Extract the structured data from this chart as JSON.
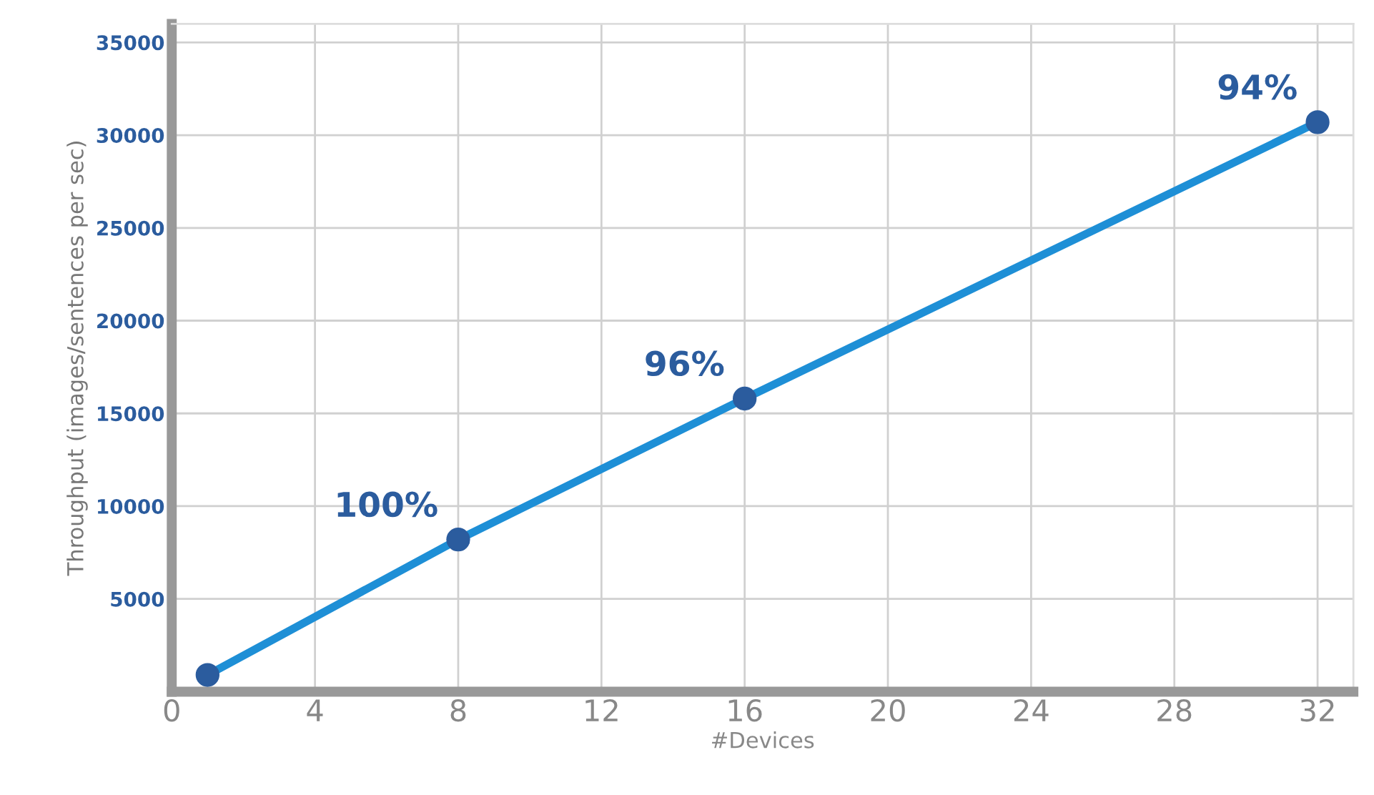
{
  "chart_data": {
    "type": "line",
    "xlabel": "#Devices",
    "ylabel": "Throughput (images/sentences per sec)",
    "x": [
      1,
      8,
      16,
      32
    ],
    "series": [
      {
        "color": "#1e8fd6",
        "values": [
          900,
          8200,
          15800,
          30700
        ]
      }
    ],
    "annotations": [
      {
        "text": "100%",
        "x": 8,
        "y": 8200
      },
      {
        "text": "96%",
        "x": 16,
        "y": 15800
      },
      {
        "text": "94%",
        "x": 32,
        "y": 30700
      }
    ],
    "xlim": [
      0,
      33
    ],
    "xticks": [
      0,
      4,
      8,
      12,
      16,
      20,
      24,
      28,
      32
    ],
    "ylim": [
      0,
      36000
    ],
    "yticks": [
      5000,
      10000,
      15000,
      20000,
      25000,
      30000,
      35000
    ],
    "grid": true,
    "marker": "circle",
    "line_style": "solid"
  }
}
